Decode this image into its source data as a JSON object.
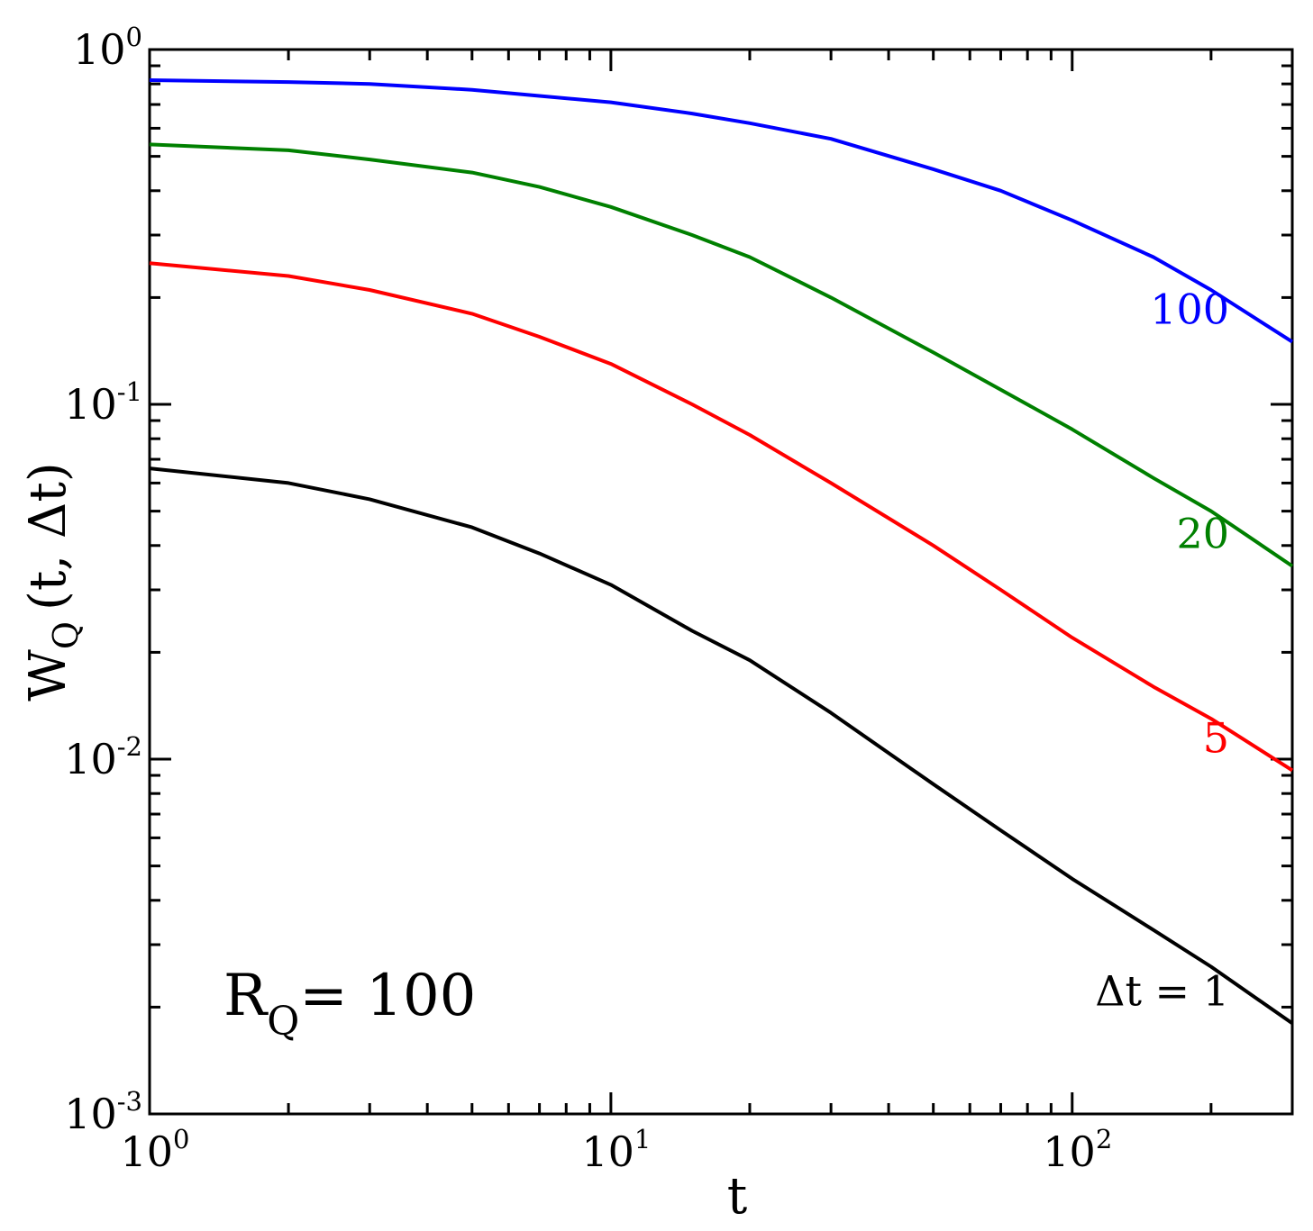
{
  "chart_data": {
    "type": "line",
    "x_scale": "log",
    "y_scale": "log",
    "xlim": [
      1,
      300
    ],
    "ylim": [
      0.001,
      1
    ],
    "grid": false,
    "xlabel": "t",
    "ylabel_main": "W",
    "ylabel_sub": "Q",
    "ylabel_rest": "(t, Δt)",
    "x_ticks": [
      {
        "base": "10",
        "exp": "0",
        "value": 1
      },
      {
        "base": "10",
        "exp": "1",
        "value": 10
      },
      {
        "base": "10",
        "exp": "2",
        "value": 100
      }
    ],
    "y_ticks": [
      {
        "base": "10",
        "exp": "0",
        "value": 1
      },
      {
        "base": "10",
        "exp": "-1",
        "value": 0.1
      },
      {
        "base": "10",
        "exp": "-2",
        "value": 0.01
      },
      {
        "base": "10",
        "exp": "-3",
        "value": 0.001
      }
    ],
    "annotation": {
      "main": "R",
      "sub": "Q",
      "rest": "= 100"
    },
    "series": [
      {
        "name": "100",
        "color": "#0000ff",
        "x": [
          1,
          2,
          3,
          5,
          7,
          10,
          15,
          20,
          30,
          50,
          70,
          100,
          150,
          200,
          300
        ],
        "y": [
          0.82,
          0.81,
          0.8,
          0.77,
          0.74,
          0.71,
          0.66,
          0.62,
          0.56,
          0.46,
          0.4,
          0.33,
          0.26,
          0.21,
          0.15
        ]
      },
      {
        "name": "20",
        "color": "#008000",
        "x": [
          1,
          2,
          3,
          5,
          7,
          10,
          15,
          20,
          30,
          50,
          70,
          100,
          150,
          200,
          300
        ],
        "y": [
          0.54,
          0.52,
          0.49,
          0.45,
          0.41,
          0.36,
          0.3,
          0.26,
          0.2,
          0.14,
          0.11,
          0.085,
          0.062,
          0.05,
          0.035
        ]
      },
      {
        "name": "5",
        "color": "#ff0000",
        "x": [
          1,
          2,
          3,
          5,
          7,
          10,
          15,
          20,
          30,
          50,
          70,
          100,
          150,
          200,
          300
        ],
        "y": [
          0.25,
          0.23,
          0.21,
          0.18,
          0.155,
          0.13,
          0.1,
          0.082,
          0.06,
          0.04,
          0.03,
          0.022,
          0.016,
          0.013,
          0.0093
        ]
      },
      {
        "name": "Δt = 1",
        "color": "#000000",
        "x": [
          1,
          2,
          3,
          5,
          7,
          10,
          15,
          20,
          30,
          50,
          70,
          100,
          150,
          200,
          300
        ],
        "y": [
          0.066,
          0.06,
          0.054,
          0.045,
          0.038,
          0.031,
          0.023,
          0.019,
          0.0135,
          0.0085,
          0.0063,
          0.0046,
          0.0033,
          0.0026,
          0.0018
        ]
      }
    ]
  }
}
